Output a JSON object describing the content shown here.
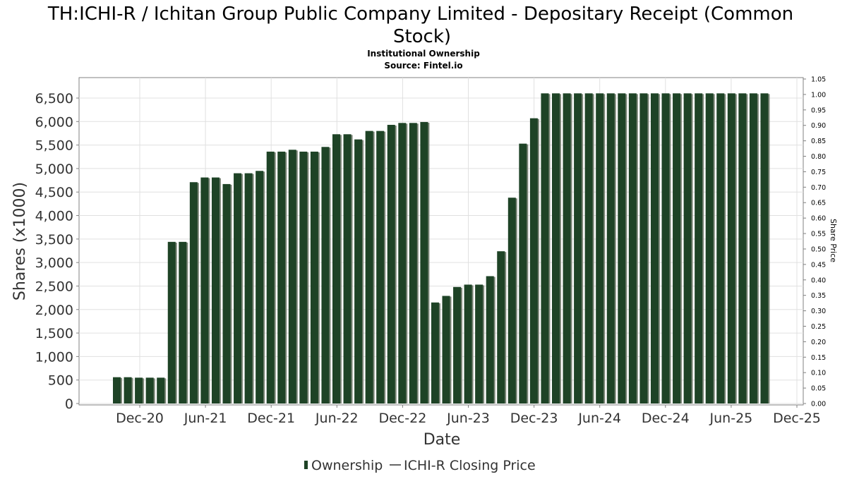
{
  "chart_data": {
    "type": "bar",
    "title": "TH:ICHI-R / Ichitan Group Public Company Limited - Depositary Receipt (Common Stock)",
    "subtitle": "Institutional Ownership",
    "source": "Source: Fintel.io",
    "xlabel": "Date",
    "ylabel": "Shares (x1000)",
    "y2label": "Share Price",
    "ylim": [
      0,
      6800
    ],
    "y2lim": [
      0,
      1.05
    ],
    "yticks": [
      "0",
      "500",
      "1,000",
      "1,500",
      "2,000",
      "2,500",
      "3,000",
      "3,500",
      "4,000",
      "4,500",
      "5,000",
      "5,500",
      "6,000",
      "6,500"
    ],
    "y2ticks": [
      "0.00",
      "0.05",
      "0.10",
      "0.15",
      "0.20",
      "0.25",
      "0.30",
      "0.35",
      "0.40",
      "0.45",
      "0.50",
      "0.55",
      "0.60",
      "0.65",
      "0.70",
      "0.75",
      "0.80",
      "0.85",
      "0.90",
      "0.95",
      "1.00",
      "1.05"
    ],
    "xticks": [
      "Dec-20",
      "Jun-21",
      "Dec-21",
      "Jun-22",
      "Dec-22",
      "Jun-23",
      "Dec-23",
      "Jun-24",
      "Dec-24",
      "Jun-25",
      "Dec-25"
    ],
    "grid": true,
    "legend_position": "bottom",
    "colors": {
      "bar": "#1e4326",
      "bar_shadow": "#7d8779",
      "grid": "#e0e0e0",
      "axis": "#808080"
    },
    "series": [
      {
        "name": "Ownership",
        "values": [
          560,
          560,
          550,
          550,
          550,
          3440,
          3440,
          4710,
          4810,
          4810,
          4670,
          4900,
          4900,
          4950,
          5360,
          5360,
          5400,
          5360,
          5360,
          5460,
          5730,
          5730,
          5620,
          5800,
          5800,
          5930,
          5970,
          5970,
          5990,
          2150,
          2290,
          2480,
          2530,
          2530,
          2710,
          3240,
          4380,
          5530,
          6070,
          6600,
          6600,
          6600,
          6600,
          6600,
          6600,
          6600,
          6600,
          6600,
          6600,
          6600,
          6600,
          6600,
          6600,
          6600,
          6600,
          6600,
          6600,
          6600,
          6600,
          6600
        ]
      },
      {
        "name": "ICHI-R Closing Price",
        "values": []
      }
    ]
  }
}
